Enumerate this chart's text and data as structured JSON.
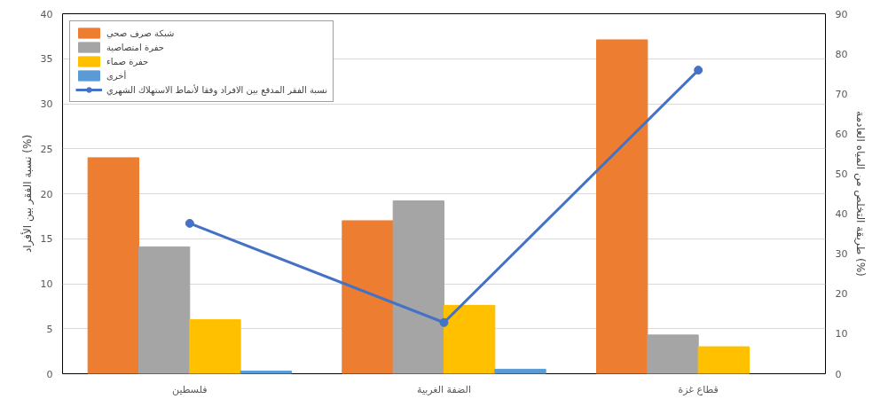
{
  "chart_data": {
    "type": "bar",
    "ylabel": "نسبة الفقر بين الأفراد (%)",
    "y2label": "طريقة التخلص من المياه العادمة (%)",
    "categories": [
      "فلسطين",
      "الضفة الغربية",
      "قطاع غزة"
    ],
    "series": [
      {
        "name": "شبكة صرف صحي",
        "color": "#ed7d31",
        "values": [
          24,
          17,
          37.1
        ]
      },
      {
        "name": "حفرة امتصاصية",
        "color": "#a5a5a5",
        "values": [
          14.1,
          19.2,
          4.3
        ]
      },
      {
        "name": "حفرة صماء",
        "color": "#ffc000",
        "values": [
          6,
          7.6,
          3
        ]
      },
      {
        "name": "أخرى",
        "color": "#5b9bd5",
        "values": [
          0.3,
          0.5,
          null
        ]
      },
      {
        "name": "نسبة الفقر المدقع بين الافراد وفقا لأنماط الاستهلاك الشهري",
        "type": "line",
        "axis": "y2",
        "color": "#4472c4",
        "marker": "circle",
        "values": [
          37.6,
          12.8,
          75.9
        ]
      }
    ],
    "ylim": [
      0,
      40
    ],
    "yticks": [
      0,
      5,
      10,
      15,
      20,
      25,
      30,
      35,
      40
    ],
    "y2lim": [
      0,
      90
    ],
    "y2ticks": [
      0,
      10,
      20,
      30,
      40,
      50,
      60,
      70,
      80,
      90
    ],
    "grid": "y",
    "legend": "top left"
  }
}
